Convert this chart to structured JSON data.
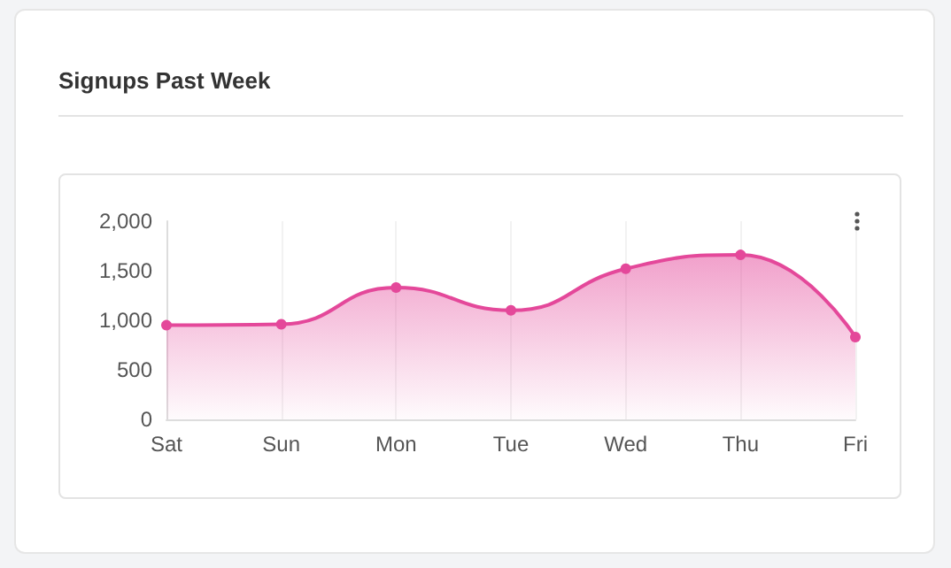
{
  "chart_data": {
    "type": "area",
    "title": "Signups Past Week",
    "categories": [
      "Sat",
      "Sun",
      "Mon",
      "Tue",
      "Wed",
      "Thu",
      "Fri"
    ],
    "series": [
      {
        "color": "#e4489a",
        "values": [
          950,
          960,
          1330,
          1100,
          1520,
          1660,
          830
        ]
      }
    ],
    "ylim": [
      0,
      2000
    ],
    "yticks": [
      0,
      500,
      {
        "value": 1000,
        "label": "1,000"
      },
      {
        "value": 1500,
        "label": "1,500"
      },
      {
        "value": 2000,
        "label": "2,000"
      }
    ],
    "grid": "x",
    "marker": "circle",
    "line_style": "solid"
  }
}
